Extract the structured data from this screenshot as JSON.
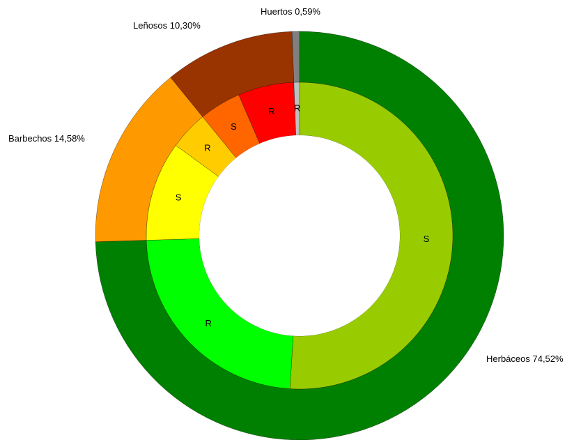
{
  "chart_data": {
    "type": "pie",
    "variant": "nested-donut",
    "title": "",
    "colors_note": "outer ring categories with inner ring split into S and R",
    "outer": [
      {
        "label": "Herbáceos 74,52%",
        "value": 74.52,
        "color": "#008000"
      },
      {
        "label": "Barbechos 14,58%",
        "value": 14.58,
        "color": "#FF9900"
      },
      {
        "label": "Leñosos 10,30%",
        "value": 10.3,
        "color": "#993300"
      },
      {
        "label": "Huertos 0,59%",
        "value": 0.59,
        "color": "#808080"
      }
    ],
    "inner": [
      {
        "label": "S",
        "value": 51.0,
        "color": "#99CC00",
        "parent": "Herbáceos"
      },
      {
        "label": "R",
        "value": 23.52,
        "color": "#00FF00",
        "parent": "Herbáceos"
      },
      {
        "label": "S",
        "value": 10.5,
        "color": "#FFFF00",
        "parent": "Barbechos"
      },
      {
        "label": "R",
        "value": 4.08,
        "color": "#FFCC00",
        "parent": "Barbechos"
      },
      {
        "label": "S",
        "value": 4.4,
        "color": "#FF6600",
        "parent": "Leñosos"
      },
      {
        "label": "R",
        "value": 5.9,
        "color": "#FF0000",
        "parent": "Leñosos"
      },
      {
        "label": "R",
        "value": 0.59,
        "color": "#C0C0C0",
        "parent": "Huertos"
      }
    ]
  }
}
